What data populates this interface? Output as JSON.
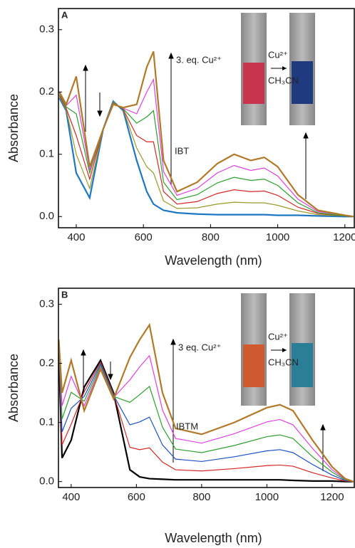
{
  "chart_data": [
    {
      "type": "line",
      "panel_label": "A",
      "xlabel": "Wavelength (nm)",
      "ylabel": "Absorbance",
      "reagent_label": "3. eq. Cu²⁺",
      "compound_label": "IBT",
      "inset_top": "Cu²⁺",
      "inset_bottom": "CH₃CN",
      "xlim": [
        347,
        1228
      ],
      "ylim": [
        -0.018,
        0.334
      ],
      "xticks": [
        400,
        600,
        800,
        1000,
        1200
      ],
      "yticks": [
        {
          "value": 0,
          "label": "0.0"
        },
        0.1,
        0.2,
        0.3
      ],
      "x": [
        350,
        370,
        400,
        440,
        480,
        510,
        540,
        580,
        610,
        630,
        660,
        700,
        760,
        820,
        870,
        920,
        960,
        1000,
        1060,
        1120,
        1200,
        1225
      ],
      "series": [
        {
          "color": "#1f77c4",
          "values": [
            0.19,
            0.17,
            0.07,
            0.03,
            0.14,
            0.185,
            0.17,
            0.09,
            0.04,
            0.02,
            0.01,
            0.006,
            0.004,
            0.003,
            0.003,
            0.003,
            0.003,
            0.002,
            0.002,
            0.001,
            0,
            0
          ]
        },
        {
          "color": "#9a9a2a",
          "values": [
            0.192,
            0.172,
            0.1,
            0.045,
            0.14,
            0.184,
            0.172,
            0.11,
            0.08,
            0.07,
            0.025,
            0.013,
            0.014,
            0.02,
            0.023,
            0.022,
            0.022,
            0.018,
            0.009,
            0.003,
            0.001,
            0
          ]
        },
        {
          "color": "#d62728",
          "values": [
            0.194,
            0.174,
            0.13,
            0.06,
            0.14,
            0.183,
            0.172,
            0.13,
            0.12,
            0.12,
            0.04,
            0.02,
            0.024,
            0.037,
            0.043,
            0.04,
            0.041,
            0.034,
            0.015,
            0.005,
            0.001,
            0
          ]
        },
        {
          "color": "#2ca02c",
          "values": [
            0.196,
            0.176,
            0.165,
            0.07,
            0.14,
            0.182,
            0.173,
            0.15,
            0.16,
            0.17,
            0.055,
            0.027,
            0.035,
            0.054,
            0.063,
            0.058,
            0.06,
            0.05,
            0.022,
            0.006,
            0.001,
            0
          ]
        },
        {
          "color": "#e040e0",
          "values": [
            0.198,
            0.178,
            0.195,
            0.075,
            0.14,
            0.181,
            0.174,
            0.165,
            0.2,
            0.22,
            0.072,
            0.034,
            0.045,
            0.07,
            0.082,
            0.074,
            0.078,
            0.065,
            0.028,
            0.008,
            0.002,
            0
          ]
        },
        {
          "color": "#b07a2a",
          "values": [
            0.2,
            0.18,
            0.225,
            0.08,
            0.14,
            0.18,
            0.175,
            0.18,
            0.24,
            0.265,
            0.09,
            0.04,
            0.055,
            0.085,
            0.1,
            0.09,
            0.095,
            0.08,
            0.035,
            0.01,
            0.002,
            0
          ]
        }
      ]
    },
    {
      "type": "line",
      "panel_label": "B",
      "xlabel": "Wavelength (nm)",
      "ylabel": "Absorbance",
      "reagent_label": "3 eq. Cu²⁺",
      "compound_label": "IBTM",
      "inset_top": "Cu²⁺",
      "inset_bottom": "CH₃CN",
      "xlim": [
        361,
        1268
      ],
      "ylim": [
        -0.01,
        0.327
      ],
      "xticks": [
        400,
        600,
        800,
        1000,
        1200
      ],
      "yticks": [
        {
          "value": 0,
          "label": "0.0"
        },
        0.1,
        0.2,
        0.3
      ],
      "x": [
        362,
        372,
        400,
        440,
        490,
        530,
        580,
        610,
        640,
        680,
        720,
        800,
        900,
        1000,
        1040,
        1080,
        1140,
        1200,
        1240,
        1265
      ],
      "series": [
        {
          "color": "#000000",
          "values": [
            0.22,
            0.04,
            0.07,
            0.16,
            0.205,
            0.15,
            0.02,
            0.008,
            0.005,
            0.004,
            0.003,
            0.003,
            0.003,
            0.003,
            0.003,
            0.002,
            0.001,
            0.001,
            0,
            0
          ]
        },
        {
          "color": "#d62728",
          "values": [
            0.224,
            0.062,
            0.097,
            0.152,
            0.202,
            0.148,
            0.058,
            0.054,
            0.057,
            0.033,
            0.02,
            0.018,
            0.022,
            0.027,
            0.028,
            0.026,
            0.015,
            0.006,
            0.001,
            0
          ]
        },
        {
          "color": "#1f4fc4",
          "values": [
            0.228,
            0.084,
            0.124,
            0.144,
            0.199,
            0.146,
            0.096,
            0.101,
            0.109,
            0.062,
            0.038,
            0.034,
            0.042,
            0.052,
            0.054,
            0.049,
            0.029,
            0.011,
            0.002,
            0
          ]
        },
        {
          "color": "#2ca02c",
          "values": [
            0.232,
            0.106,
            0.151,
            0.136,
            0.196,
            0.144,
            0.134,
            0.147,
            0.161,
            0.092,
            0.055,
            0.049,
            0.061,
            0.076,
            0.079,
            0.073,
            0.042,
            0.016,
            0.003,
            0
          ]
        },
        {
          "color": "#e040e0",
          "values": [
            0.236,
            0.128,
            0.178,
            0.128,
            0.193,
            0.142,
            0.172,
            0.194,
            0.213,
            0.121,
            0.073,
            0.065,
            0.081,
            0.101,
            0.105,
            0.096,
            0.056,
            0.02,
            0.004,
            0
          ]
        },
        {
          "color": "#b07a2a",
          "values": [
            0.24,
            0.15,
            0.205,
            0.12,
            0.19,
            0.14,
            0.21,
            0.24,
            0.265,
            0.15,
            0.09,
            0.08,
            0.1,
            0.125,
            0.13,
            0.12,
            0.07,
            0.025,
            0.005,
            0
          ]
        }
      ]
    }
  ]
}
